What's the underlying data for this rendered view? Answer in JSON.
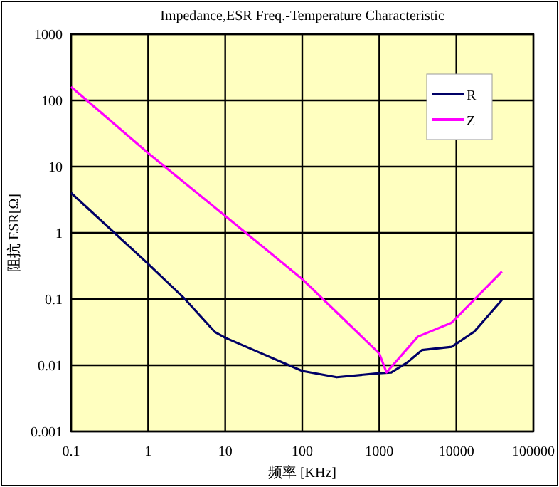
{
  "chart_data": {
    "type": "line",
    "title": "Impedance,ESR Freq.-Temperature Characteristic",
    "xlabel": "频率 [KHz]",
    "ylabel": "阻抗 ESR[Ω]",
    "log": "xy",
    "grid": true,
    "legend": "top right",
    "marker": "none",
    "line_style": "solid",
    "xlim": [
      0.1,
      100000
    ],
    "ylim": [
      0.001,
      1000
    ],
    "xticks": [
      0.1,
      1,
      10,
      100,
      1000,
      10000,
      100000
    ],
    "yticks": [
      0.001,
      0.01,
      0.1,
      1,
      10,
      100,
      1000
    ],
    "series": [
      {
        "name": "R",
        "color": "#000066",
        "x": [
          0.1,
          1,
          3,
          7.3,
          10,
          30,
          100,
          280,
          1000,
          1430,
          2300,
          3600,
          8700,
          17000,
          39000
        ],
        "values": [
          4,
          0.34,
          0.1,
          0.032,
          0.026,
          0.015,
          0.0082,
          0.0066,
          0.0076,
          0.0078,
          0.011,
          0.017,
          0.019,
          0.032,
          0.097
        ]
      },
      {
        "name": "Z",
        "color": "#ff00ff",
        "x": [
          0.1,
          1,
          10,
          100,
          1000,
          1240,
          3160,
          8700,
          39000
        ],
        "values": [
          160,
          16,
          1.8,
          0.2,
          0.015,
          0.0078,
          0.027,
          0.044,
          0.26
        ]
      }
    ]
  }
}
